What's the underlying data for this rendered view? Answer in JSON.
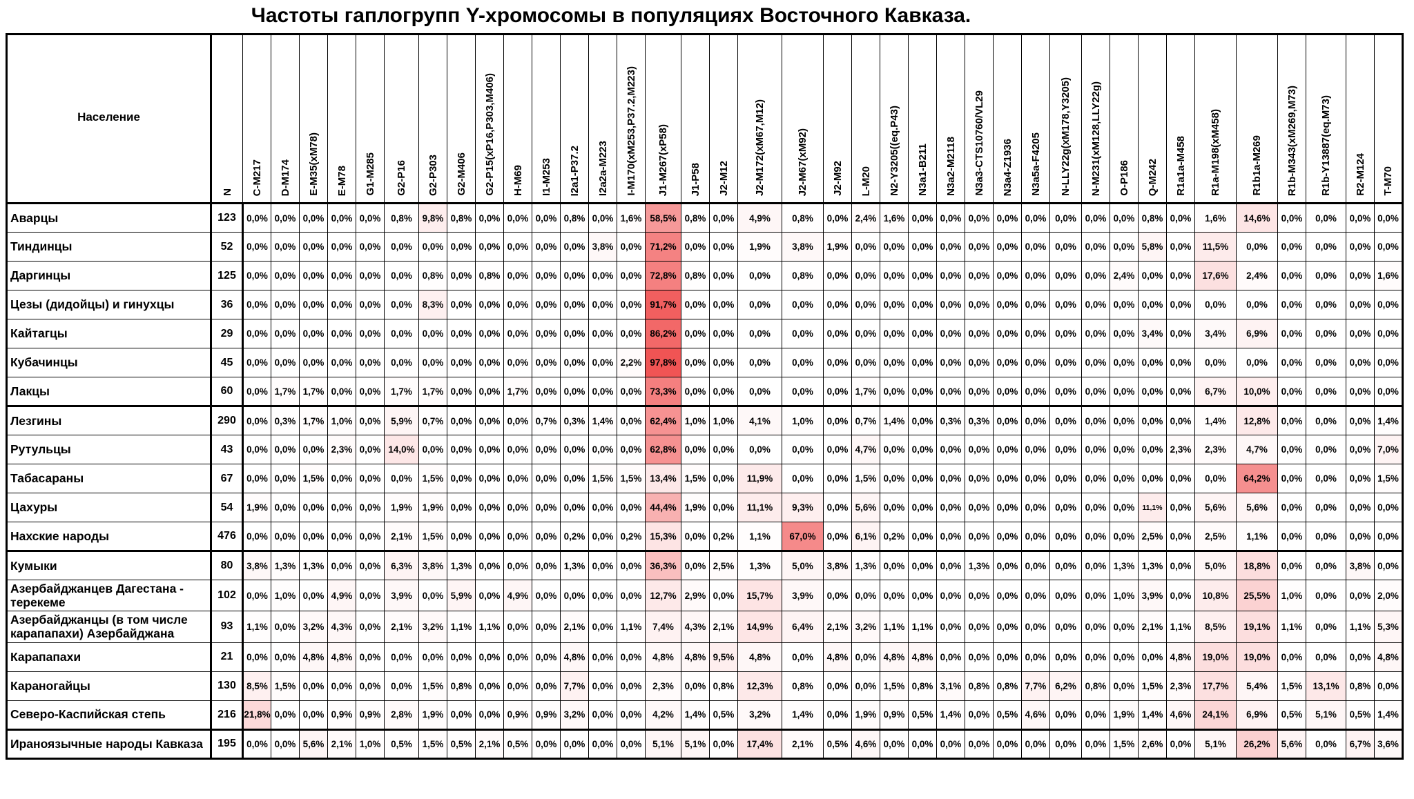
{
  "title": "Частоты гаплогрупп Y-хромосомы в популяциях Восточного Кавказа.",
  "colors": {
    "heat_max": "#f05050",
    "cell_default": "#ffffff",
    "text": "#000000"
  },
  "table": {
    "population_header": "Население",
    "n_header": "N",
    "haplogroup_headers": [
      "C-M217",
      "D-M174",
      "E-M35(xM78)",
      "E-M78",
      "G1-M285",
      "G2-P16",
      "G2-P303",
      "G2-M406",
      "G2-P15(xP16,P303,M406)",
      "H-M69",
      "I1-M253",
      "I2a1-P37.2",
      "I2a2a-M223",
      "I-M170(xM253,P37.2,M223)",
      "J1-M267(xP58)",
      "J1-P58",
      "J2-M12",
      "J2-M172(xM67,M12)",
      "J2-M67(xM92)",
      "J2-M92",
      "L-M20",
      "N2-Y3205((eq.P43)",
      "N3a1-B211",
      "N3a2-M2118",
      "N3a3-CTS10760/VL29",
      "N3a4-Z1936",
      "N3a5a-F4205",
      "N-LLY22g(xM178,Y3205)",
      "N-M231(xM128,LLY22g)",
      "O-P186",
      "Q-M242",
      "R1a1a-M458",
      "R1a-M198(xM458)",
      "R1b1a-M269",
      "R1b-M343(xM269,M73)",
      "R1b-Y13887(eq.M73)",
      "R2-M124",
      "T-M70"
    ],
    "rows": [
      {
        "name": "Аварцы",
        "n": "123",
        "values": [
          "0,0%",
          "0,0%",
          "0,0%",
          "0,0%",
          "0,0%",
          "0,8%",
          "9,8%",
          "0,8%",
          "0,0%",
          "0,0%",
          "0,0%",
          "0,8%",
          "0,0%",
          "1,6%",
          "58,5%",
          "0,8%",
          "0,0%",
          "4,9%",
          "0,8%",
          "0,0%",
          "2,4%",
          "1,6%",
          "0,0%",
          "0,0%",
          "0,0%",
          "0,0%",
          "0,0%",
          "0,0%",
          "0,0%",
          "0,0%",
          "0,8%",
          "0,0%",
          "1,6%",
          "14,6%",
          "0,0%",
          "0,0%",
          "0,0%",
          "0,0%"
        ]
      },
      {
        "name": "Тиндинцы",
        "n": "52",
        "values": [
          "0,0%",
          "0,0%",
          "0,0%",
          "0,0%",
          "0,0%",
          "0,0%",
          "0,0%",
          "0,0%",
          "0,0%",
          "0,0%",
          "0,0%",
          "0,0%",
          "3,8%",
          "0,0%",
          "71,2%",
          "0,0%",
          "0,0%",
          "1,9%",
          "3,8%",
          "1,9%",
          "0,0%",
          "0,0%",
          "0,0%",
          "0,0%",
          "0,0%",
          "0,0%",
          "0,0%",
          "0,0%",
          "0,0%",
          "0,0%",
          "5,8%",
          "0,0%",
          "11,5%",
          "0,0%",
          "0,0%",
          "0,0%",
          "0,0%",
          "0,0%"
        ]
      },
      {
        "name": "Даргинцы",
        "n": "125",
        "values": [
          "0,0%",
          "0,0%",
          "0,0%",
          "0,0%",
          "0,0%",
          "0,0%",
          "0,8%",
          "0,0%",
          "0,8%",
          "0,0%",
          "0,0%",
          "0,0%",
          "0,0%",
          "0,0%",
          "72,8%",
          "0,8%",
          "0,0%",
          "0,0%",
          "0,8%",
          "0,0%",
          "0,0%",
          "0,0%",
          "0,0%",
          "0,0%",
          "0,0%",
          "0,0%",
          "0,0%",
          "0,0%",
          "0,0%",
          "2,4%",
          "0,0%",
          "0,0%",
          "17,6%",
          "2,4%",
          "0,0%",
          "0,0%",
          "0,0%",
          "1,6%"
        ]
      },
      {
        "name": "Цезы (дидойцы) и гинухцы",
        "n": "36",
        "values": [
          "0,0%",
          "0,0%",
          "0,0%",
          "0,0%",
          "0,0%",
          "0,0%",
          "8,3%",
          "0,0%",
          "0,0%",
          "0,0%",
          "0,0%",
          "0,0%",
          "0,0%",
          "0,0%",
          "91,7%",
          "0,0%",
          "0,0%",
          "0,0%",
          "0,0%",
          "0,0%",
          "0,0%",
          "0,0%",
          "0,0%",
          "0,0%",
          "0,0%",
          "0,0%",
          "0,0%",
          "0,0%",
          "0,0%",
          "0,0%",
          "0,0%",
          "0,0%",
          "0,0%",
          "0,0%",
          "0,0%",
          "0,0%",
          "0,0%",
          "0,0%"
        ]
      },
      {
        "name": "Кайтагцы",
        "n": "29",
        "values": [
          "0,0%",
          "0,0%",
          "0,0%",
          "0,0%",
          "0,0%",
          "0,0%",
          "0,0%",
          "0,0%",
          "0,0%",
          "0,0%",
          "0,0%",
          "0,0%",
          "0,0%",
          "0,0%",
          "86,2%",
          "0,0%",
          "0,0%",
          "0,0%",
          "0,0%",
          "0,0%",
          "0,0%",
          "0,0%",
          "0,0%",
          "0,0%",
          "0,0%",
          "0,0%",
          "0,0%",
          "0,0%",
          "0,0%",
          "0,0%",
          "3,4%",
          "0,0%",
          "3,4%",
          "6,9%",
          "0,0%",
          "0,0%",
          "0,0%",
          "0,0%"
        ]
      },
      {
        "name": "Кубачинцы",
        "n": "45",
        "values": [
          "0,0%",
          "0,0%",
          "0,0%",
          "0,0%",
          "0,0%",
          "0,0%",
          "0,0%",
          "0,0%",
          "0,0%",
          "0,0%",
          "0,0%",
          "0,0%",
          "0,0%",
          "2,2%",
          "97,8%",
          "0,0%",
          "0,0%",
          "0,0%",
          "0,0%",
          "0,0%",
          "0,0%",
          "0,0%",
          "0,0%",
          "0,0%",
          "0,0%",
          "0,0%",
          "0,0%",
          "0,0%",
          "0,0%",
          "0,0%",
          "0,0%",
          "0,0%",
          "0,0%",
          "0,0%",
          "0,0%",
          "0,0%",
          "0,0%",
          "0,0%"
        ]
      },
      {
        "name": "Лакцы",
        "n": "60",
        "values": [
          "0,0%",
          "1,7%",
          "1,7%",
          "0,0%",
          "0,0%",
          "1,7%",
          "1,7%",
          "0,0%",
          "0,0%",
          "1,7%",
          "0,0%",
          "0,0%",
          "0,0%",
          "0,0%",
          "73,3%",
          "0,0%",
          "0,0%",
          "0,0%",
          "0,0%",
          "0,0%",
          "1,7%",
          "0,0%",
          "0,0%",
          "0,0%",
          "0,0%",
          "0,0%",
          "0,0%",
          "0,0%",
          "0,0%",
          "0,0%",
          "0,0%",
          "0,0%",
          "6,7%",
          "10,0%",
          "0,0%",
          "0,0%",
          "0,0%",
          "0,0%"
        ]
      },
      {
        "name": "Лезгины",
        "n": "290",
        "values": [
          "0,0%",
          "0,3%",
          "1,7%",
          "1,0%",
          "0,0%",
          "5,9%",
          "0,7%",
          "0,0%",
          "0,0%",
          "0,0%",
          "0,7%",
          "0,3%",
          "1,4%",
          "0,0%",
          "62,4%",
          "1,0%",
          "1,0%",
          "4,1%",
          "1,0%",
          "0,0%",
          "0,7%",
          "1,4%",
          "0,0%",
          "0,3%",
          "0,3%",
          "0,0%",
          "0,0%",
          "0,0%",
          "0,0%",
          "0,0%",
          "0,0%",
          "0,0%",
          "1,4%",
          "12,8%",
          "0,0%",
          "0,0%",
          "0,0%",
          "1,4%"
        ]
      },
      {
        "name": "Рутульцы",
        "n": "43",
        "values": [
          "0,0%",
          "0,0%",
          "0,0%",
          "2,3%",
          "0,0%",
          "14,0%",
          "0,0%",
          "0,0%",
          "0,0%",
          "0,0%",
          "0,0%",
          "0,0%",
          "0,0%",
          "0,0%",
          "62,8%",
          "0,0%",
          "0,0%",
          "0,0%",
          "0,0%",
          "0,0%",
          "4,7%",
          "0,0%",
          "0,0%",
          "0,0%",
          "0,0%",
          "0,0%",
          "0,0%",
          "0,0%",
          "0,0%",
          "0,0%",
          "0,0%",
          "2,3%",
          "2,3%",
          "4,7%",
          "0,0%",
          "0,0%",
          "0,0%",
          "7,0%"
        ]
      },
      {
        "name": "Табасараны",
        "n": "67",
        "values": [
          "0,0%",
          "0,0%",
          "1,5%",
          "0,0%",
          "0,0%",
          "0,0%",
          "1,5%",
          "0,0%",
          "0,0%",
          "0,0%",
          "0,0%",
          "0,0%",
          "1,5%",
          "1,5%",
          "13,4%",
          "1,5%",
          "0,0%",
          "11,9%",
          "0,0%",
          "0,0%",
          "1,5%",
          "0,0%",
          "0,0%",
          "0,0%",
          "0,0%",
          "0,0%",
          "0,0%",
          "0,0%",
          "0,0%",
          "0,0%",
          "0,0%",
          "0,0%",
          "0,0%",
          "64,2%",
          "0,0%",
          "0,0%",
          "0,0%",
          "1,5%"
        ]
      },
      {
        "name": "Цахуры",
        "n": "54",
        "values": [
          "1,9%",
          "0,0%",
          "0,0%",
          "0,0%",
          "0,0%",
          "1,9%",
          "1,9%",
          "0,0%",
          "0,0%",
          "0,0%",
          "0,0%",
          "0,0%",
          "0,0%",
          "0,0%",
          "44,4%",
          "1,9%",
          "0,0%",
          "11,1%",
          "9,3%",
          "0,0%",
          "5,6%",
          "0,0%",
          "0,0%",
          "0,0%",
          "0,0%",
          "0,0%",
          "0,0%",
          "0,0%",
          "0,0%",
          "0,0%",
          "11,1%",
          "0,0%",
          "5,6%",
          "5,6%",
          "0,0%",
          "0,0%",
          "0,0%",
          "0,0%"
        ]
      },
      {
        "name": "Нахские народы",
        "n": "476",
        "values": [
          "0,0%",
          "0,0%",
          "0,0%",
          "0,0%",
          "0,0%",
          "2,1%",
          "1,5%",
          "0,0%",
          "0,0%",
          "0,0%",
          "0,0%",
          "0,2%",
          "0,0%",
          "0,2%",
          "15,3%",
          "0,0%",
          "0,2%",
          "1,1%",
          "67,0%",
          "0,0%",
          "6,1%",
          "0,2%",
          "0,0%",
          "0,0%",
          "0,0%",
          "0,0%",
          "0,0%",
          "0,0%",
          "0,0%",
          "0,0%",
          "2,5%",
          "0,0%",
          "2,5%",
          "1,1%",
          "0,0%",
          "0,0%",
          "0,0%",
          "0,0%"
        ]
      },
      {
        "name": "Кумыки",
        "n": "80",
        "values": [
          "3,8%",
          "1,3%",
          "1,3%",
          "0,0%",
          "0,0%",
          "6,3%",
          "3,8%",
          "1,3%",
          "0,0%",
          "0,0%",
          "0,0%",
          "1,3%",
          "0,0%",
          "0,0%",
          "36,3%",
          "0,0%",
          "2,5%",
          "1,3%",
          "5,0%",
          "3,8%",
          "1,3%",
          "0,0%",
          "0,0%",
          "0,0%",
          "1,3%",
          "0,0%",
          "0,0%",
          "0,0%",
          "0,0%",
          "1,3%",
          "1,3%",
          "0,0%",
          "5,0%",
          "18,8%",
          "0,0%",
          "0,0%",
          "3,8%",
          "0,0%"
        ]
      },
      {
        "name": "Азербайджанцев Дагестана - терекеме",
        "n": "102",
        "values": [
          "0,0%",
          "1,0%",
          "0,0%",
          "4,9%",
          "0,0%",
          "3,9%",
          "0,0%",
          "5,9%",
          "0,0%",
          "4,9%",
          "0,0%",
          "0,0%",
          "0,0%",
          "0,0%",
          "12,7%",
          "2,9%",
          "0,0%",
          "15,7%",
          "3,9%",
          "0,0%",
          "0,0%",
          "0,0%",
          "0,0%",
          "0,0%",
          "0,0%",
          "0,0%",
          "0,0%",
          "0,0%",
          "0,0%",
          "1,0%",
          "3,9%",
          "0,0%",
          "10,8%",
          "25,5%",
          "1,0%",
          "0,0%",
          "0,0%",
          "2,0%"
        ]
      },
      {
        "name": "Азербайджанцы (в том числе карапапахи) Азербайджана",
        "n": "93",
        "values": [
          "1,1%",
          "0,0%",
          "3,2%",
          "4,3%",
          "0,0%",
          "2,1%",
          "3,2%",
          "1,1%",
          "1,1%",
          "0,0%",
          "0,0%",
          "2,1%",
          "0,0%",
          "1,1%",
          "7,4%",
          "4,3%",
          "2,1%",
          "14,9%",
          "6,4%",
          "2,1%",
          "3,2%",
          "1,1%",
          "1,1%",
          "0,0%",
          "0,0%",
          "0,0%",
          "0,0%",
          "0,0%",
          "0,0%",
          "0,0%",
          "2,1%",
          "1,1%",
          "8,5%",
          "19,1%",
          "1,1%",
          "0,0%",
          "1,1%",
          "5,3%"
        ]
      },
      {
        "name": "Карапапахи",
        "n": "21",
        "values": [
          "0,0%",
          "0,0%",
          "4,8%",
          "4,8%",
          "0,0%",
          "0,0%",
          "0,0%",
          "0,0%",
          "0,0%",
          "0,0%",
          "0,0%",
          "4,8%",
          "0,0%",
          "0,0%",
          "4,8%",
          "4,8%",
          "9,5%",
          "4,8%",
          "0,0%",
          "4,8%",
          "0,0%",
          "4,8%",
          "4,8%",
          "0,0%",
          "0,0%",
          "0,0%",
          "0,0%",
          "0,0%",
          "0,0%",
          "0,0%",
          "0,0%",
          "4,8%",
          "19,0%",
          "19,0%",
          "0,0%",
          "0,0%",
          "0,0%",
          "4,8%"
        ]
      },
      {
        "name": "Караногайцы",
        "n": "130",
        "values": [
          "8,5%",
          "1,5%",
          "0,0%",
          "0,0%",
          "0,0%",
          "0,0%",
          "1,5%",
          "0,8%",
          "0,0%",
          "0,0%",
          "0,0%",
          "7,7%",
          "0,0%",
          "0,0%",
          "2,3%",
          "0,0%",
          "0,8%",
          "12,3%",
          "0,8%",
          "0,0%",
          "0,0%",
          "1,5%",
          "0,8%",
          "3,1%",
          "0,8%",
          "0,8%",
          "7,7%",
          "6,2%",
          "0,8%",
          "0,0%",
          "1,5%",
          "2,3%",
          "17,7%",
          "5,4%",
          "1,5%",
          "13,1%",
          "0,8%",
          "0,0%"
        ]
      },
      {
        "name": "Северо-Каспийская степь",
        "n": "216",
        "values": [
          "21,8%",
          "0,0%",
          "0,0%",
          "0,9%",
          "0,9%",
          "2,8%",
          "1,9%",
          "0,0%",
          "0,0%",
          "0,9%",
          "0,9%",
          "3,2%",
          "0,0%",
          "0,0%",
          "4,2%",
          "1,4%",
          "0,5%",
          "3,2%",
          "1,4%",
          "0,0%",
          "1,9%",
          "0,9%",
          "0,5%",
          "1,4%",
          "0,0%",
          "0,5%",
          "4,6%",
          "0,0%",
          "0,0%",
          "1,9%",
          "1,4%",
          "4,6%",
          "24,1%",
          "6,9%",
          "0,5%",
          "5,1%",
          "0,5%",
          "1,4%"
        ]
      },
      {
        "name": "Ираноязычные народы Кавказа",
        "n": "195",
        "values": [
          "0,0%",
          "0,0%",
          "5,6%",
          "2,1%",
          "1,0%",
          "0,5%",
          "1,5%",
          "0,5%",
          "2,1%",
          "0,5%",
          "0,0%",
          "0,0%",
          "0,0%",
          "0,0%",
          "5,1%",
          "5,1%",
          "0,0%",
          "17,4%",
          "2,1%",
          "0,5%",
          "4,6%",
          "0,0%",
          "0,0%",
          "0,0%",
          "0,0%",
          "0,0%",
          "0,0%",
          "0,0%",
          "0,0%",
          "1,5%",
          "2,6%",
          "0,0%",
          "5,1%",
          "26,2%",
          "5,6%",
          "0,0%",
          "6,7%",
          "3,6%"
        ]
      }
    ],
    "group_breaks_after_row_index": [
      6,
      11,
      17
    ],
    "small_value_cells": [
      {
        "row": 10,
        "col": 30
      }
    ]
  }
}
